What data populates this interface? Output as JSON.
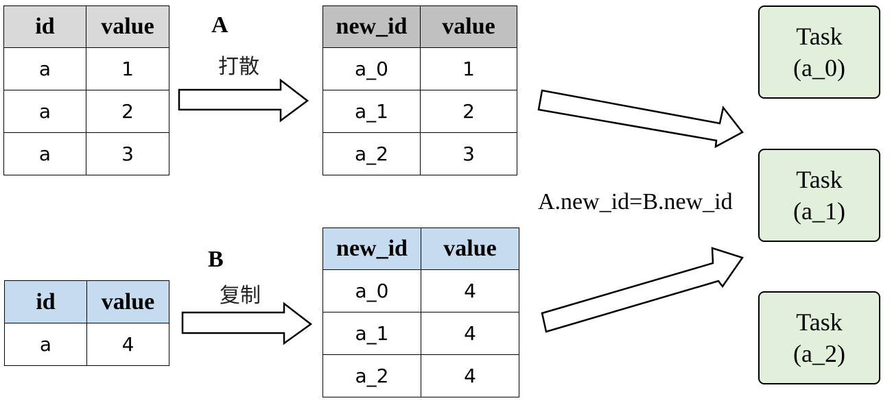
{
  "table_a": {
    "headers": [
      "id",
      "value"
    ],
    "header_bg": "#d9d9d9",
    "rows": [
      [
        "a",
        "1"
      ],
      [
        "a",
        "2"
      ],
      [
        "a",
        "3"
      ]
    ]
  },
  "label_a": {
    "letter": "A",
    "action": "打散"
  },
  "table_a_new": {
    "headers": [
      "new_id",
      "value"
    ],
    "header_bg": "#c0c0c0",
    "rows": [
      [
        "a_0",
        "1"
      ],
      [
        "a_1",
        "2"
      ],
      [
        "a_2",
        "3"
      ]
    ]
  },
  "table_b": {
    "headers": [
      "id",
      "value"
    ],
    "header_bg": "#c5dbef",
    "rows": [
      [
        "a",
        "4"
      ]
    ]
  },
  "label_b": {
    "letter": "B",
    "action": "复制"
  },
  "table_b_new": {
    "headers": [
      "new_id",
      "value"
    ],
    "header_bg": "#c5dbef",
    "rows": [
      [
        "a_0",
        "4"
      ],
      [
        "a_1",
        "4"
      ],
      [
        "a_2",
        "4"
      ]
    ]
  },
  "join_condition": "A.new_id=B.new_id",
  "tasks": [
    {
      "line1": "Task",
      "line2": "(a_0)"
    },
    {
      "line1": "Task",
      "line2": "(a_1)"
    },
    {
      "line1": "Task",
      "line2": "(a_2)"
    }
  ],
  "task_bg": "#e2efda"
}
